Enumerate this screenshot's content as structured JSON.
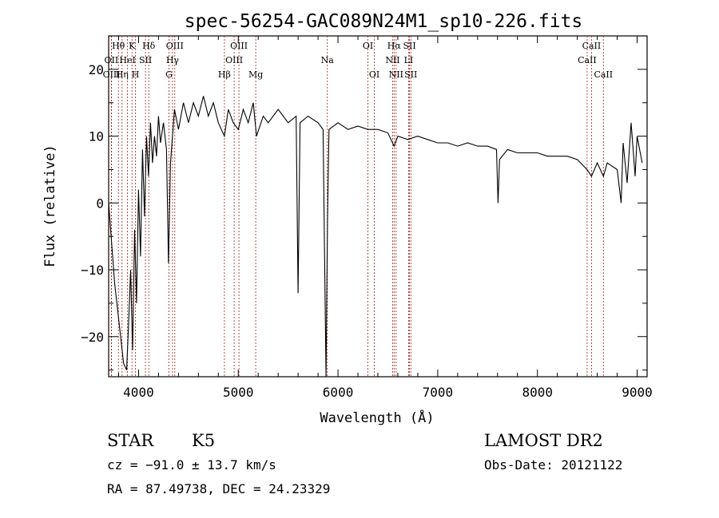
{
  "chart_data": {
    "type": "line",
    "title": "spec-56254-GAC089N24M1_sp10-226.fits",
    "xlabel": "Wavelength (Å)",
    "ylabel": "Flux (relative)",
    "xlim": [
      3700,
      9100
    ],
    "ylim": [
      -26,
      25
    ],
    "x_ticks": [
      4000,
      5000,
      6000,
      7000,
      8000,
      9000
    ],
    "y_ticks": [
      -20,
      -10,
      0,
      10,
      20
    ],
    "grid": false,
    "series": [
      {
        "values": [
          [
            3700,
            0
          ],
          [
            3760,
            -12
          ],
          [
            3820,
            -20
          ],
          [
            3850,
            -24
          ],
          [
            3880,
            -25
          ],
          [
            3900,
            -18
          ],
          [
            3920,
            -10
          ],
          [
            3940,
            -22
          ],
          [
            3960,
            -4
          ],
          [
            3980,
            -15
          ],
          [
            4000,
            2
          ],
          [
            4020,
            -8
          ],
          [
            4040,
            8
          ],
          [
            4060,
            -2
          ],
          [
            4080,
            10
          ],
          [
            4100,
            4
          ],
          [
            4120,
            12
          ],
          [
            4140,
            6
          ],
          [
            4160,
            10
          ],
          [
            4180,
            7
          ],
          [
            4200,
            13
          ],
          [
            4220,
            9
          ],
          [
            4250,
            12
          ],
          [
            4280,
            8
          ],
          [
            4300,
            -9
          ],
          [
            4320,
            6
          ],
          [
            4360,
            14
          ],
          [
            4400,
            11
          ],
          [
            4450,
            15
          ],
          [
            4500,
            12
          ],
          [
            4550,
            15
          ],
          [
            4600,
            13
          ],
          [
            4650,
            16
          ],
          [
            4700,
            13
          ],
          [
            4750,
            15
          ],
          [
            4800,
            12
          ],
          [
            4861,
            10
          ],
          [
            4900,
            14
          ],
          [
            4950,
            12
          ],
          [
            5000,
            11
          ],
          [
            5050,
            14
          ],
          [
            5100,
            12
          ],
          [
            5150,
            15
          ],
          [
            5183,
            10
          ],
          [
            5250,
            13
          ],
          [
            5300,
            12
          ],
          [
            5400,
            14
          ],
          [
            5500,
            12
          ],
          [
            5580,
            13
          ],
          [
            5600,
            -13.5
          ],
          [
            5620,
            12
          ],
          [
            5700,
            13
          ],
          [
            5800,
            12
          ],
          [
            5850,
            11
          ],
          [
            5880,
            -26
          ],
          [
            5895,
            -2
          ],
          [
            5910,
            11
          ],
          [
            6000,
            12
          ],
          [
            6100,
            11
          ],
          [
            6200,
            11.5
          ],
          [
            6300,
            11
          ],
          [
            6400,
            11
          ],
          [
            6500,
            10.5
          ],
          [
            6563,
            8.5
          ],
          [
            6600,
            10
          ],
          [
            6700,
            9.5
          ],
          [
            6800,
            10
          ],
          [
            6900,
            9.5
          ],
          [
            7000,
            9
          ],
          [
            7100,
            9
          ],
          [
            7200,
            8.5
          ],
          [
            7300,
            9
          ],
          [
            7400,
            8.5
          ],
          [
            7500,
            8.5
          ],
          [
            7590,
            8
          ],
          [
            7605,
            0
          ],
          [
            7620,
            6.5
          ],
          [
            7700,
            8
          ],
          [
            7800,
            7.5
          ],
          [
            7900,
            7.5
          ],
          [
            8000,
            7.5
          ],
          [
            8100,
            7
          ],
          [
            8200,
            7
          ],
          [
            8300,
            7
          ],
          [
            8400,
            6.5
          ],
          [
            8498,
            5
          ],
          [
            8542,
            4
          ],
          [
            8600,
            6
          ],
          [
            8662,
            4
          ],
          [
            8700,
            6
          ],
          [
            8800,
            5
          ],
          [
            8840,
            0
          ],
          [
            8860,
            9
          ],
          [
            8900,
            3
          ],
          [
            8940,
            12
          ],
          [
            8980,
            4
          ],
          [
            9000,
            10
          ],
          [
            9050,
            6
          ]
        ]
      }
    ],
    "line_labels": [
      {
        "text": "Hθ",
        "wl": 3798,
        "row": 1
      },
      {
        "text": "OII",
        "wl": 3727,
        "row": 2
      },
      {
        "text": "OIII",
        "wl": 3729,
        "row": 3
      },
      {
        "text": "K",
        "wl": 3934,
        "row": 1
      },
      {
        "text": "HeI",
        "wl": 3889,
        "row": 2
      },
      {
        "text": "Hη",
        "wl": 3835,
        "row": 3
      },
      {
        "text": "Hδ",
        "wl": 4102,
        "row": 1
      },
      {
        "text": "SII",
        "wl": 4069,
        "row": 2
      },
      {
        "text": "H",
        "wl": 3968,
        "row": 3
      },
      {
        "text": "OIII",
        "wl": 4363,
        "row": 1
      },
      {
        "text": "Hγ",
        "wl": 4340,
        "row": 2
      },
      {
        "text": "G",
        "wl": 4305,
        "row": 3
      },
      {
        "text": "OIII",
        "wl": 5007,
        "row": 1
      },
      {
        "text": "OIII",
        "wl": 4959,
        "row": 2
      },
      {
        "text": "Hβ",
        "wl": 4861,
        "row": 3
      },
      {
        "text": "Mg",
        "wl": 5175,
        "row": 3
      },
      {
        "text": "Na",
        "wl": 5893,
        "row": 2
      },
      {
        "text": "OI",
        "wl": 6300,
        "row": 1
      },
      {
        "text": "OI",
        "wl": 6364,
        "row": 3
      },
      {
        "text": "Hα",
        "wl": 6563,
        "row": 1
      },
      {
        "text": "NII",
        "wl": 6548,
        "row": 2
      },
      {
        "text": "NII",
        "wl": 6583,
        "row": 3
      },
      {
        "text": "SII",
        "wl": 6717,
        "row": 1
      },
      {
        "text": "LI",
        "wl": 6708,
        "row": 2
      },
      {
        "text": "SII",
        "wl": 6731,
        "row": 3
      },
      {
        "text": "CaII",
        "wl": 8542,
        "row": 1
      },
      {
        "text": "CaII",
        "wl": 8498,
        "row": 2
      },
      {
        "text": "CaII",
        "wl": 8662,
        "row": 3
      }
    ],
    "marker_lines_wl": [
      3727,
      3729,
      3798,
      3835,
      3889,
      3934,
      3968,
      4069,
      4102,
      4305,
      4340,
      4363,
      4861,
      4959,
      5007,
      5175,
      5893,
      6300,
      6364,
      6548,
      6563,
      6583,
      6708,
      6717,
      6731,
      8498,
      8542,
      8662
    ],
    "marker_color": "#a0201c"
  },
  "info": {
    "class": "STAR",
    "subclass": "K5",
    "cz": "cz = −91.0 ± 13.7 km/s",
    "coords": "RA =  87.49738, DEC =  24.23329",
    "survey": "LAMOST DR2",
    "obs_date": "Obs-Date: 20121122"
  }
}
